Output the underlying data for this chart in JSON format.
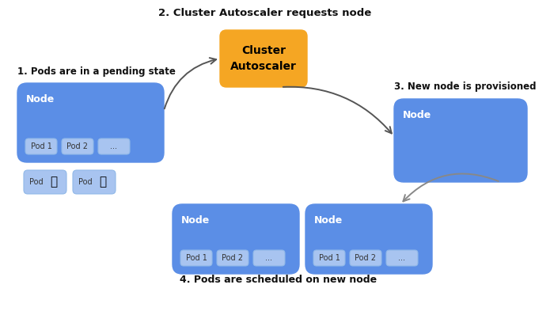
{
  "bg_color": "#ffffff",
  "blue_node": "#5b8ee6",
  "orange_box": "#f5a623",
  "pod_box": "#a8c4f0",
  "pod_box_border": "#90b8e8",
  "label_color": "#111111",
  "node_text_color": "#ffffff",
  "pod_text_color": "#333333",
  "step1_label": "1. Pods are in a pending state",
  "step2_label": "2. Cluster Autoscaler requests node",
  "step3_label": "3. New node is provisioned",
  "step4_label": "4. Pods are scheduled on new node",
  "autoscaler_label": "Cluster\nAutoscaler",
  "node_label": "Node",
  "pod_labels": [
    "Pod 1",
    "Pod 2",
    "..."
  ],
  "hourglass": "⌛"
}
